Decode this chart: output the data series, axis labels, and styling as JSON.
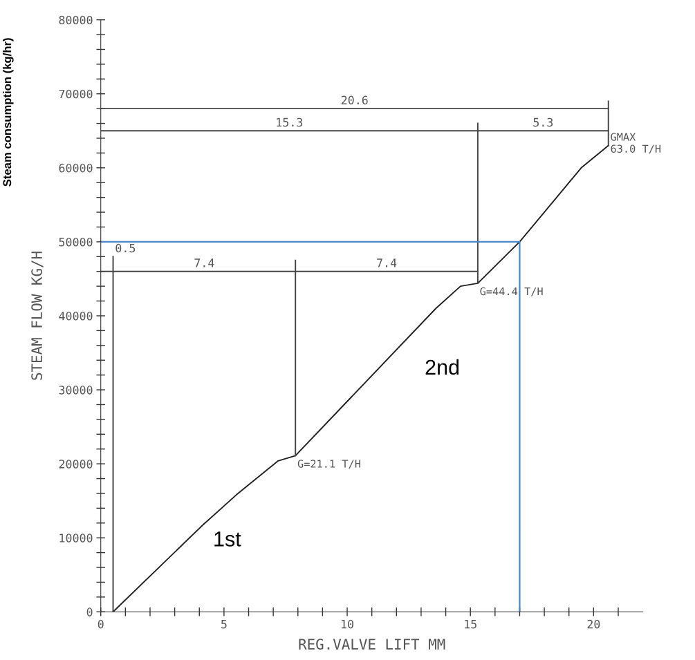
{
  "chart_data": {
    "type": "line",
    "xlabel": "REG.VALVE LIFT MM",
    "ylabel": "STEAM FLOW KG/H",
    "xlim": [
      0,
      22
    ],
    "ylim": [
      0,
      80000
    ],
    "xticks": [
      0,
      {
        "value": 1,
        "label": null
      },
      {
        "value": 2,
        "label": null
      },
      {
        "value": 3,
        "label": null
      },
      {
        "value": 4,
        "label": null
      },
      5,
      {
        "value": 6,
        "label": null
      },
      {
        "value": 7,
        "label": null
      },
      {
        "value": 8,
        "label": null
      },
      {
        "value": 9,
        "label": null
      },
      10,
      {
        "value": 11,
        "label": null
      },
      {
        "value": 12,
        "label": null
      },
      {
        "value": 13,
        "label": null
      },
      {
        "value": 14,
        "label": null
      },
      15,
      {
        "value": 16,
        "label": null
      },
      {
        "value": 17,
        "label": null
      },
      {
        "value": 18,
        "label": null
      },
      {
        "value": 19,
        "label": null
      },
      20,
      {
        "value": 21,
        "label": null
      }
    ],
    "yticks": [
      0,
      {
        "value": 2000,
        "label": null
      },
      {
        "value": 4000,
        "label": null
      },
      {
        "value": 6000,
        "label": null
      },
      {
        "value": 8000,
        "label": null
      },
      10000,
      {
        "value": 12000,
        "label": null
      },
      {
        "value": 14000,
        "label": null
      },
      {
        "value": 16000,
        "label": null
      },
      {
        "value": 18000,
        "label": null
      },
      20000,
      {
        "value": 22000,
        "label": null
      },
      {
        "value": 24000,
        "label": null
      },
      {
        "value": 26000,
        "label": null
      },
      {
        "value": 28000,
        "label": null
      },
      30000,
      {
        "value": 32000,
        "label": null
      },
      {
        "value": 34000,
        "label": null
      },
      {
        "value": 36000,
        "label": null
      },
      {
        "value": 38000,
        "label": null
      },
      40000,
      {
        "value": 42000,
        "label": null
      },
      {
        "value": 44000,
        "label": null
      },
      {
        "value": 46000,
        "label": null
      },
      {
        "value": 48000,
        "label": null
      },
      50000,
      {
        "value": 52000,
        "label": null
      },
      {
        "value": 54000,
        "label": null
      },
      {
        "value": 56000,
        "label": null
      },
      {
        "value": 58000,
        "label": null
      },
      60000,
      {
        "value": 62000,
        "label": null
      },
      {
        "value": 64000,
        "label": null
      },
      {
        "value": 66000,
        "label": null
      },
      {
        "value": 68000,
        "label": null
      },
      70000,
      {
        "value": 72000,
        "label": null
      },
      {
        "value": 74000,
        "label": null
      },
      {
        "value": 76000,
        "label": null
      },
      {
        "value": 78000,
        "label": null
      },
      80000
    ],
    "grid": false,
    "marker": "none",
    "line_style": "solid",
    "series": [
      {
        "color": "#222222",
        "x": [
          0.5,
          4.1,
          5.5,
          7.2,
          7.9,
          13.6,
          14.6,
          15.3,
          17,
          19.5,
          20.6
        ],
        "values": [
          0,
          11600,
          15800,
          20400,
          21100,
          41000,
          44000,
          44400,
          50000,
          60000,
          63000
        ]
      },
      {
        "color": "#444444",
        "x": [
          0.5,
          0.5
        ],
        "values": [
          0,
          48000
        ]
      },
      {
        "color": "#444444",
        "x": [
          7.9,
          7.9
        ],
        "values": [
          21100,
          47500
        ]
      },
      {
        "color": "#444444",
        "x": [
          15.3,
          15.3
        ],
        "values": [
          44400,
          66000
        ]
      },
      {
        "color": "#444444",
        "x": [
          20.6,
          20.6
        ],
        "values": [
          63000,
          69000
        ]
      },
      {
        "color": "#444444",
        "x": [
          0,
          20.6
        ],
        "values": [
          68000,
          68000
        ]
      },
      {
        "color": "#444444",
        "x": [
          0,
          15.3,
          20.6
        ],
        "values": [
          65000,
          65000,
          65000
        ]
      },
      {
        "color": "#444444",
        "x": [
          0,
          7.9,
          15.3
        ],
        "values": [
          46000,
          46000,
          46000
        ]
      },
      {
        "color": "#4a86c8",
        "x": [
          0,
          17,
          17
        ],
        "values": [
          50000,
          50000,
          0
        ]
      }
    ],
    "annotations": [
      {
        "text": "20.6",
        "x": 10.3,
        "y": 68000
      },
      {
        "text": "15.3",
        "x": 7.65,
        "y": 65000
      },
      {
        "text": "5.3",
        "x": 17.95,
        "y": 65000
      },
      {
        "text": "0.5",
        "x": 0.5,
        "y": 48000
      },
      {
        "text": "7.4",
        "x": 4.2,
        "y": 46000
      },
      {
        "text": "7.4",
        "x": 11.6,
        "y": 46000
      },
      {
        "text": "G=44.4 T/H",
        "x": 15.3,
        "y": 44400
      },
      {
        "text": "G=21.1 T/H",
        "x": 7.9,
        "y": 21100
      },
      {
        "text": "GMAX\n63.0 T/H",
        "x": 20.6,
        "y": 63000
      },
      "1st",
      "2nd",
      "Steam consumption (kg/hr)"
    ]
  }
}
